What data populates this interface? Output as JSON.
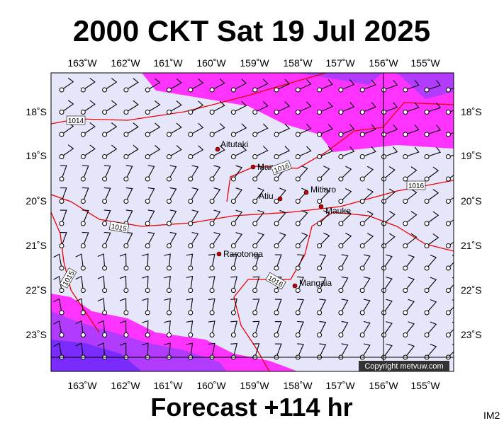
{
  "header": {
    "title": "2000 CKT Sat 19 Jul 2025"
  },
  "footer": {
    "forecast": "Forecast +114 hr",
    "id": "IM2"
  },
  "map": {
    "lon_labels": [
      "163˚W",
      "162˚W",
      "161˚W",
      "160˚W",
      "159˚W",
      "158˚W",
      "157˚W",
      "156˚W",
      "155˚W"
    ],
    "lat_labels": [
      "18˚S",
      "19˚S",
      "20˚S",
      "21˚S",
      "22˚S",
      "23˚S"
    ],
    "places": [
      "Aitutaki",
      "Manuae",
      "Atiu",
      "Mitiaro",
      "Mauke",
      "Rarotonga",
      "Mangaia"
    ],
    "isobar_labels": [
      "1014",
      "1015",
      "1015",
      "1016",
      "1016",
      "1016"
    ],
    "copyright": "Copyright metvuw.com"
  }
}
